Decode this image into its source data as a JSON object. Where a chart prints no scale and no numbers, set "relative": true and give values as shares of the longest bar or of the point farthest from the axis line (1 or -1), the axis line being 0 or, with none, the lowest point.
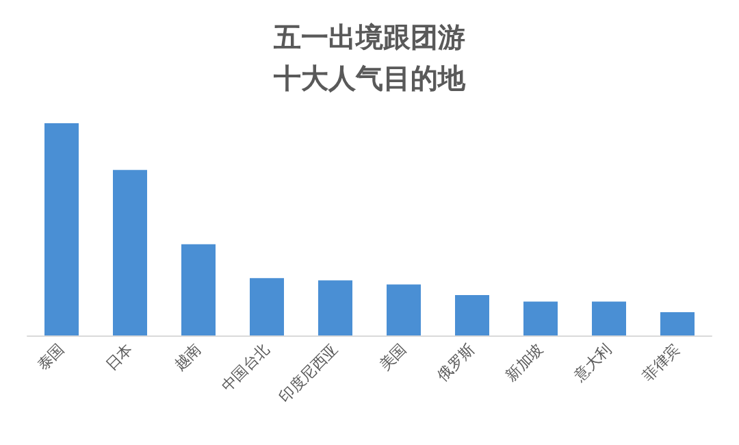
{
  "chart_data": {
    "type": "bar",
    "title": "五一出境跟团游",
    "subtitle": "十大人气目的地",
    "categories": [
      "泰国",
      "日本",
      "越南",
      "中国台北",
      "印度尼西亚",
      "美国",
      "俄罗斯",
      "新加坡",
      "意大利",
      "菲律宾"
    ],
    "values": [
      1,
      0.78,
      0.43,
      0.27,
      0.26,
      0.24,
      0.19,
      0.16,
      0.16,
      0.11
    ],
    "color": "#4a8fd4",
    "relative": true
  }
}
